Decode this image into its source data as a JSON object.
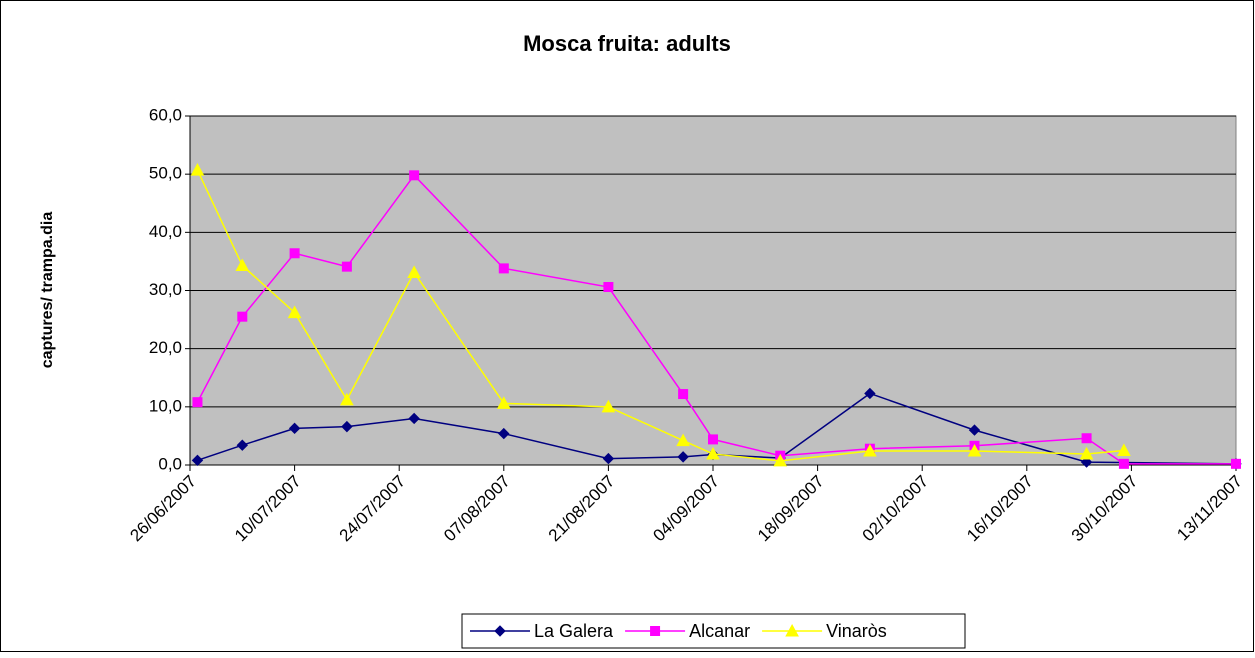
{
  "chart_data": {
    "type": "line",
    "title": "Mosca fruita: adults",
    "y_label": "captures/ trampa.dia",
    "xlim": [
      "2007-06-26",
      "2007-11-13"
    ],
    "xticks": [
      {
        "value": "2007-06-26",
        "label": "26/06/2007"
      },
      {
        "value": "2007-07-10",
        "label": "10/07/2007"
      },
      {
        "value": "2007-07-24",
        "label": "24/07/2007"
      },
      {
        "value": "2007-08-07",
        "label": "07/08/2007"
      },
      {
        "value": "2007-08-21",
        "label": "21/08/2007"
      },
      {
        "value": "2007-09-04",
        "label": "04/09/2007"
      },
      {
        "value": "2007-09-18",
        "label": "18/09/2007"
      },
      {
        "value": "2007-10-02",
        "label": "02/10/2007"
      },
      {
        "value": "2007-10-16",
        "label": "16/10/2007"
      },
      {
        "value": "2007-10-30",
        "label": "30/10/2007"
      },
      {
        "value": "2007-11-13",
        "label": "13/11/2007"
      }
    ],
    "ylim": [
      0,
      60
    ],
    "yticks": [
      {
        "value": 0,
        "label": "0,0"
      },
      {
        "value": 10,
        "label": "10,0"
      },
      {
        "value": 20,
        "label": "20,0"
      },
      {
        "value": 30,
        "label": "30,0"
      },
      {
        "value": 40,
        "label": "40,0"
      },
      {
        "value": 50,
        "label": "50,0"
      },
      {
        "value": 60,
        "label": "60,0"
      }
    ],
    "grid": true,
    "legend": "bottom",
    "series": [
      {
        "name": "La Galera",
        "color": "#000080",
        "marker": "diamond",
        "x": [
          "2007-06-27",
          "2007-07-03",
          "2007-07-10",
          "2007-07-17",
          "2007-07-26",
          "2007-08-07",
          "2007-08-21",
          "2007-08-31",
          "2007-09-04",
          "2007-09-13",
          "2007-09-25",
          "2007-10-09",
          "2007-10-24",
          "2007-11-13"
        ],
        "values": [
          0.8,
          3.4,
          6.3,
          6.6,
          8.0,
          5.4,
          1.1,
          1.4,
          1.8,
          1.2,
          12.3,
          6.0,
          0.5,
          0.2
        ]
      },
      {
        "name": "Alcanar",
        "color": "#ff00ff",
        "marker": "square",
        "x": [
          "2007-06-27",
          "2007-07-03",
          "2007-07-10",
          "2007-07-17",
          "2007-07-26",
          "2007-08-07",
          "2007-08-21",
          "2007-08-31",
          "2007-09-04",
          "2007-09-13",
          "2007-09-25",
          "2007-10-09",
          "2007-10-24",
          "2007-10-29",
          "2007-11-13"
        ],
        "values": [
          10.8,
          25.5,
          36.4,
          34.1,
          49.8,
          33.8,
          30.6,
          12.2,
          4.4,
          1.6,
          2.8,
          3.3,
          4.6,
          0.2,
          0.2
        ]
      },
      {
        "name": "Vinaròs",
        "color": "#ffff00",
        "marker": "triangle",
        "x": [
          "2007-06-27",
          "2007-07-03",
          "2007-07-10",
          "2007-07-17",
          "2007-07-26",
          "2007-08-07",
          "2007-08-21",
          "2007-08-31",
          "2007-09-04",
          "2007-09-13",
          "2007-09-25",
          "2007-10-09",
          "2007-10-24",
          "2007-10-29"
        ],
        "values": [
          50.7,
          34.3,
          26.2,
          11.2,
          33.1,
          10.6,
          10.0,
          4.2,
          1.9,
          0.7,
          2.4,
          2.4,
          1.9,
          2.5
        ]
      }
    ]
  }
}
